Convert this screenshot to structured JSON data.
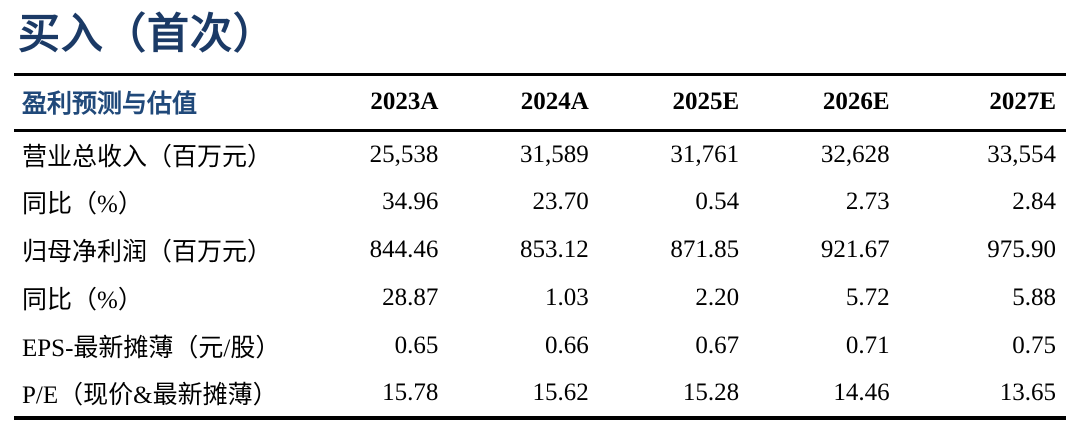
{
  "title": {
    "text": "买入（首次）",
    "color": "#1b3a66"
  },
  "table": {
    "header": {
      "label": "盈利预测与估值",
      "label_color": "#20497a",
      "years": [
        "2023A",
        "2024A",
        "2025E",
        "2026E",
        "2027E"
      ]
    },
    "rows": [
      {
        "label": "营业总收入（百万元）",
        "values": [
          "25,538",
          "31,589",
          "31,761",
          "32,628",
          "33,554"
        ]
      },
      {
        "label": "同比（%）",
        "values": [
          "34.96",
          "23.70",
          "0.54",
          "2.73",
          "2.84"
        ]
      },
      {
        "label": "归母净利润（百万元）",
        "values": [
          "844.46",
          "853.12",
          "871.85",
          "921.67",
          "975.90"
        ]
      },
      {
        "label": "同比（%）",
        "values": [
          "28.87",
          "1.03",
          "2.20",
          "5.72",
          "5.88"
        ]
      },
      {
        "label": "EPS-最新摊薄（元/股）",
        "values": [
          "0.65",
          "0.66",
          "0.67",
          "0.71",
          "0.75"
        ]
      },
      {
        "label": "P/E（现价&最新摊薄）",
        "values": [
          "15.78",
          "15.62",
          "15.28",
          "14.46",
          "13.65"
        ]
      }
    ],
    "border_color": "#000000"
  }
}
